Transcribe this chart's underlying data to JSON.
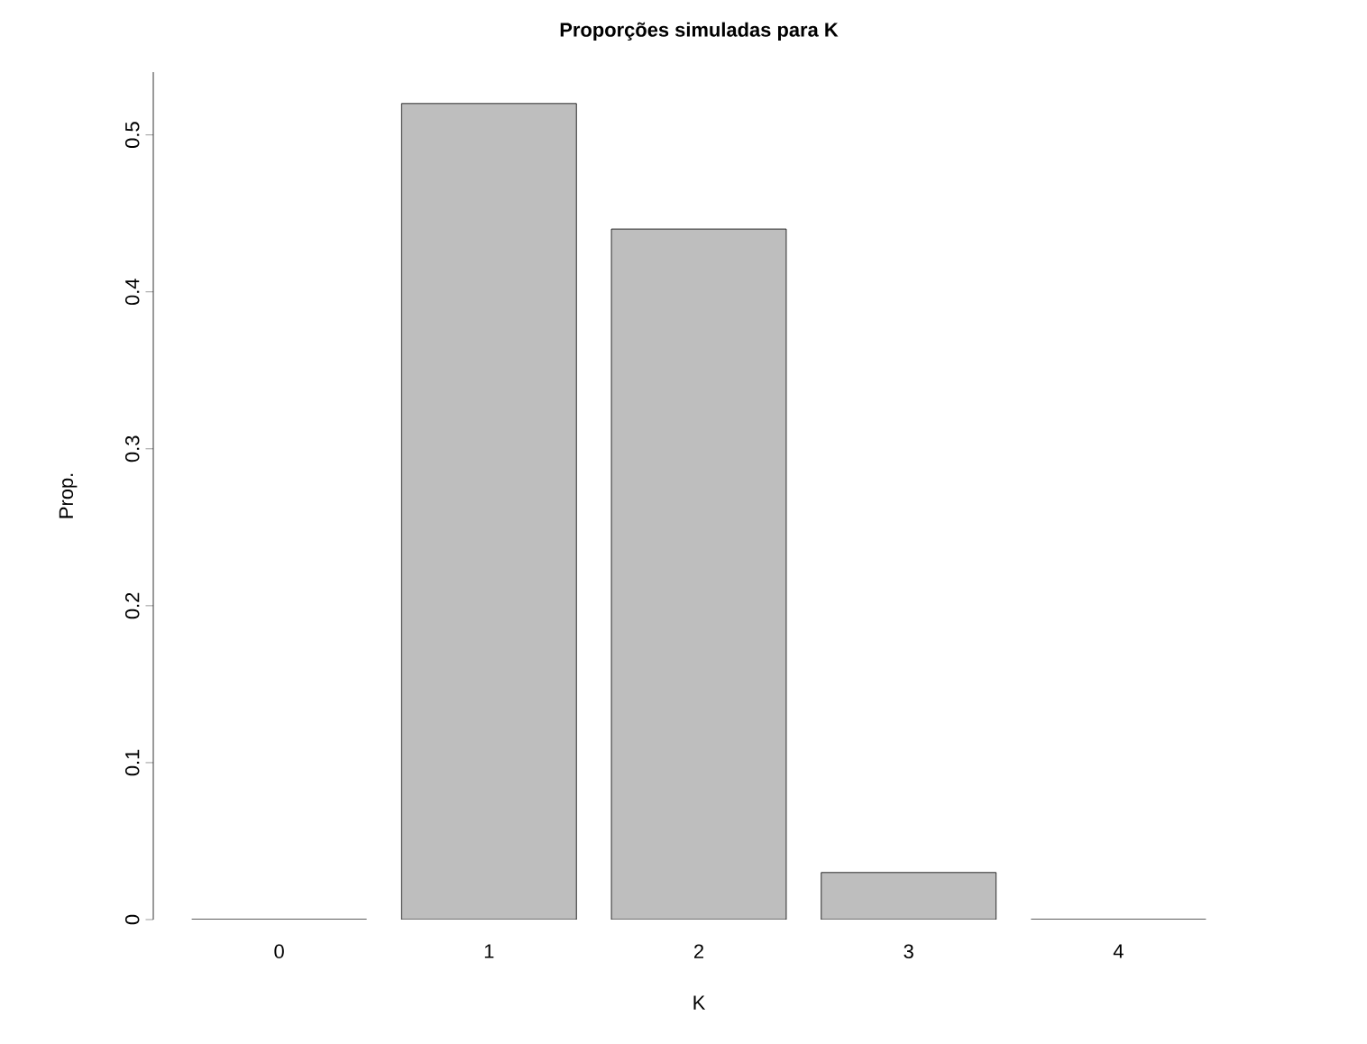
{
  "chart_data": {
    "type": "bar",
    "title": "Proporções simuladas para K",
    "xlabel": "K",
    "ylabel": "Prop.",
    "categories": [
      "0",
      "1",
      "2",
      "3",
      "4"
    ],
    "values": [
      0,
      0.52,
      0.44,
      0.03,
      0
    ],
    "color": "#bebebe",
    "ylim": [
      0,
      0.54
    ],
    "yticks": [
      0,
      0.1,
      0.2,
      0.3,
      0.4,
      0.5
    ],
    "grid": false
  }
}
